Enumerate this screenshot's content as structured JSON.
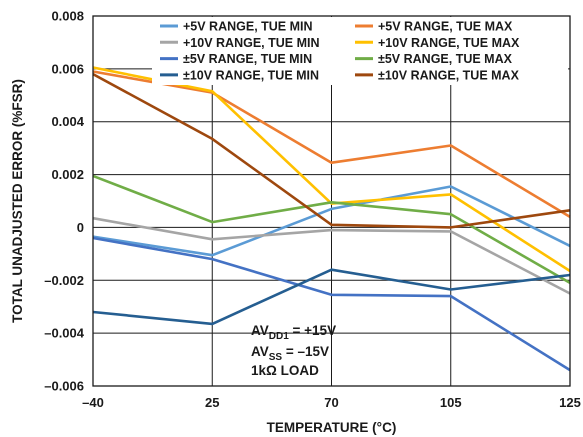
{
  "chart_data": {
    "type": "line",
    "title": "",
    "xlabel": "TEMPERATURE (°C)",
    "ylabel": "TOTAL UNADJUSTED ERROR (%FSR)",
    "x": [
      -40,
      25,
      70,
      105,
      125
    ],
    "x_tick_labels": [
      "–40",
      "25",
      "70",
      "105",
      "125"
    ],
    "ylim": [
      -0.006,
      0.008
    ],
    "y_ticks": [
      -0.006,
      -0.004,
      -0.002,
      0,
      0.002,
      0.004,
      0.006,
      0.008
    ],
    "y_tick_labels": [
      "–0.006",
      "–0.004",
      "–0.002",
      "0",
      "0.002",
      "0.004",
      "0.006",
      "0.008"
    ],
    "grid": true,
    "legend_position": "top-right",
    "series": [
      {
        "name": "+5V RANGE, TUE MIN",
        "color": "#5b9bd5",
        "values": [
          -0.00035,
          -0.00105,
          0.0007,
          0.00155,
          -0.0007
        ]
      },
      {
        "name": "+5V RANGE, TUE MAX",
        "color": "#ed7d31",
        "values": [
          0.0059,
          0.0051,
          0.00245,
          0.0031,
          0.0004
        ]
      },
      {
        "name": "+10V RANGE, TUE MIN",
        "color": "#a5a5a5",
        "values": [
          0.00035,
          -0.00045,
          -0.0001,
          -0.00015,
          -0.0025
        ]
      },
      {
        "name": "+10V RANGE, TUE MAX",
        "color": "#ffc000",
        "values": [
          0.00605,
          0.00515,
          0.0009,
          0.00125,
          -0.00165
        ]
      },
      {
        "name": "±5V RANGE, TUE MIN",
        "color": "#4472c4",
        "values": [
          -0.0004,
          -0.0012,
          -0.00255,
          -0.0026,
          -0.0054
        ]
      },
      {
        "name": "±5V RANGE, TUE MAX",
        "color": "#70ad47",
        "values": [
          0.00195,
          0.0002,
          0.00095,
          0.0005,
          -0.0021
        ]
      },
      {
        "name": "±10V RANGE, TUE MIN",
        "color": "#255e91",
        "values": [
          -0.0032,
          -0.00365,
          -0.0016,
          -0.00235,
          -0.0018
        ]
      },
      {
        "name": "±10V RANGE, TUE MAX",
        "color": "#9e480e",
        "values": [
          0.0058,
          0.00335,
          0.0001,
          0.0,
          0.00065
        ]
      }
    ],
    "annotation": {
      "line1_main": "AV",
      "line1_sub": "DD1",
      "line1_rest": " = +15V",
      "line2_main": "AV",
      "line2_sub": "SS",
      "line2_rest": " = –15V",
      "line3": "1kΩ LOAD"
    }
  }
}
